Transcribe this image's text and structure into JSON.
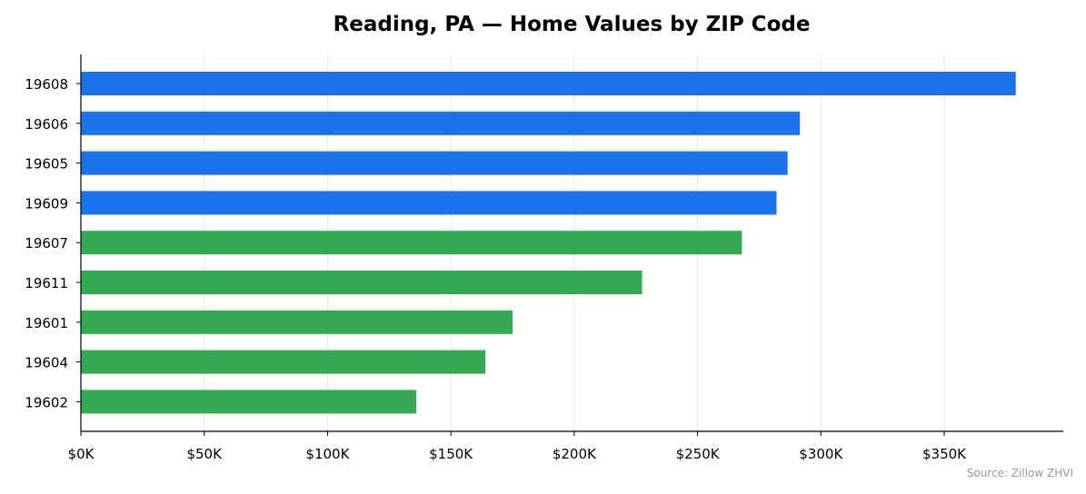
{
  "chart_data": {
    "type": "bar",
    "orientation": "horizontal",
    "title": "Reading, PA — Home Values by ZIP Code",
    "xlabel": "",
    "ylabel": "",
    "categories": [
      "19608",
      "19606",
      "19605",
      "19609",
      "19607",
      "19611",
      "19601",
      "19604",
      "19602"
    ],
    "values": [
      379000,
      291500,
      286500,
      282000,
      268000,
      227500,
      175000,
      164000,
      136000
    ],
    "bar_colors": [
      "#1a73e8",
      "#1a73e8",
      "#1a73e8",
      "#1a73e8",
      "#34a853",
      "#34a853",
      "#34a853",
      "#34a853",
      "#34a853"
    ],
    "xlim": [
      0,
      398000
    ],
    "xticks": [
      0,
      50000,
      100000,
      150000,
      200000,
      250000,
      300000,
      350000
    ],
    "xtick_labels": [
      "$0K",
      "$50K",
      "$100K",
      "$150K",
      "$200K",
      "$250K",
      "$300K",
      "$350K"
    ],
    "grid": "vertical",
    "legend": "none",
    "source_note": "Source: Zillow ZHVI"
  }
}
